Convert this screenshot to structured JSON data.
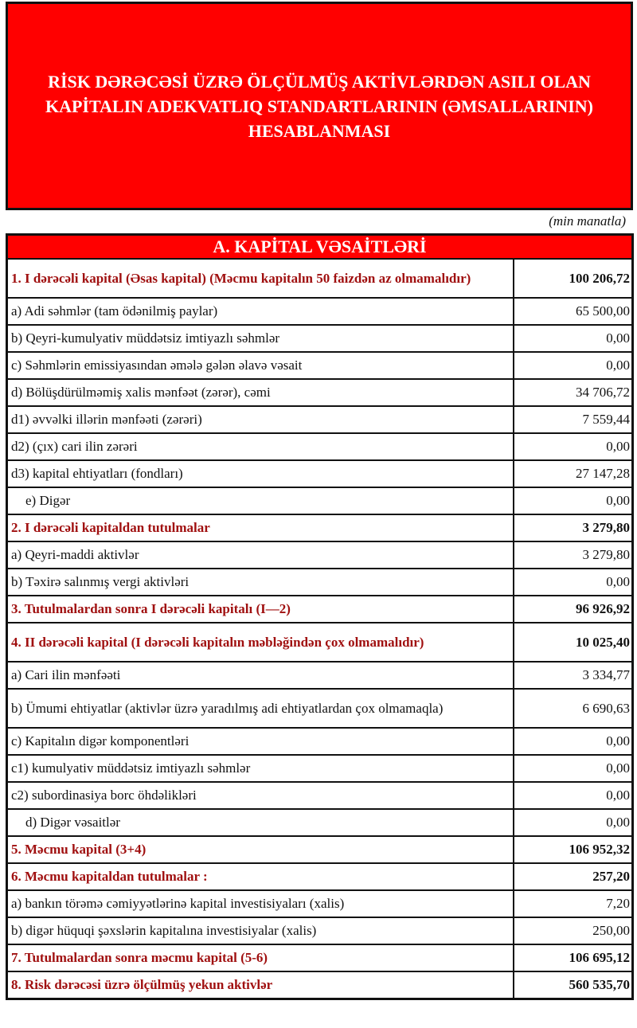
{
  "title": "RİSK DƏRƏCƏSİ ÜZRƏ ÖLÇÜLMÜŞ AKTİVLƏRDƏN ASILI OLAN KAPİTALIN ADEKVATLIQ STANDARTLARININ (ƏMSALLARININ) HESABLANMASI",
  "unit": "(min manatla)",
  "section": "A. KAPİTAL VƏSAİTLƏRİ",
  "rows": [
    {
      "label": "1. I dərəcəli kapital (Əsas kapital) (Məcmu kapitalın 50 faizdən  az olmamalıdır)",
      "value": "100 206,72"
    },
    {
      "label": "a) Adi səhmlər (tam ödənilmiş paylar)",
      "value": "65 500,00"
    },
    {
      "label": "b) Qeyri-kumulyativ müddətsiz imtiyazlı səhmlər",
      "value": "0,00"
    },
    {
      "label": "c) Səhmlərin emissiyasından əmələ gələn  əlavə vəsait",
      "value": "0,00"
    },
    {
      "label": "d)   Bölüşdürülməmiş xalis mənfəət (zərər), cəmi",
      "value": "34 706,72"
    },
    {
      "label": "d1) əvvəlki illərin mənfəəti (zərəri)",
      "value": "7 559,44"
    },
    {
      "label": "d2) (çıx) cari ilin zərəri",
      "value": "0,00"
    },
    {
      "label": "d3) kapital ehtiyatları (fondları)",
      "value": "27 147,28"
    },
    {
      "label": "e) Digər",
      "value": "0,00"
    },
    {
      "label": "2. I dərəcəli kapitaldan  tutulmalar",
      "value": "3 279,80"
    },
    {
      "label": "a) Qeyri-maddi aktivlər",
      "value": "3 279,80"
    },
    {
      "label": "b) Təxirə salınmış vergi aktivləri",
      "value": "0,00"
    },
    {
      "label": "3. Tutulmalardan  sonra I dərəcəli kapitalı (I—2)",
      "value": "96 926,92"
    },
    {
      "label": "4. II dərəcəli  kapital (I dərəcəli  kapitalın  məbləğindən çox olmamalıdır)",
      "value": "10 025,40"
    },
    {
      "label": "a) Cari ilin mənfəəti",
      "value": "3 334,77"
    },
    {
      "label": "b) Ümumi ehtiyatlar (aktivlər üzrə yaradılmış adi ehtiyatlardan çox olmamaqla)",
      "value": "6 690,63"
    },
    {
      "label": "c)  Kapitalın digər komponentləri",
      "value": "0,00"
    },
    {
      "label": "c1) kumulyativ müddətsiz imtiyazlı səhmlər",
      "value": "0,00"
    },
    {
      "label": "c2) subordinasiya borc öhdəlikləri",
      "value": "0,00"
    },
    {
      "label": "d) Digər vəsaitlər",
      "value": "0,00"
    },
    {
      "label": "5. Məcmu kapital (3+4)",
      "value": "106 952,32"
    },
    {
      "label": "6. Məcmu kapitaldan tutulmalar :",
      "value": "257,20"
    },
    {
      "label": "a)   bankın törəmə cəmiyyətlərinə kapital investisiyaları (xalis)",
      "value": "7,20"
    },
    {
      "label": "b)   digər hüquqi şəxslərin kapitalına investisiyalar (xalis)",
      "value": "250,00"
    },
    {
      "label": "7. Tutulmalardan  sonra məcmu kapital (5-6)",
      "value": "106 695,12"
    },
    {
      "label": "8. Risk dərəcəsi üzrə ölçülmüş  yekun aktivlər",
      "value": "560 535,70"
    }
  ]
}
